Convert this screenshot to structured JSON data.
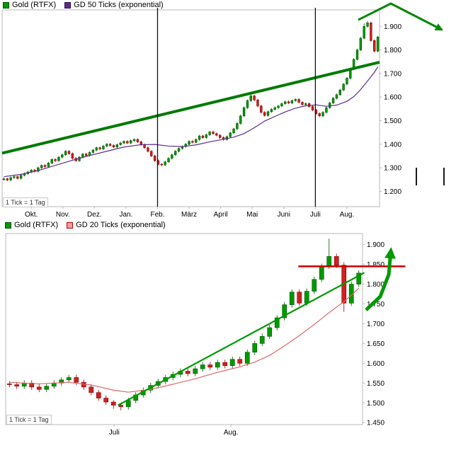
{
  "window": {
    "background": "#ffffff"
  },
  "chart_data": [
    {
      "type": "candlestick",
      "title": "Gold (RTFX) with GD 50 Ticks (exponential)",
      "legend_position": "top-left",
      "grid": false,
      "frame_color": "#b8b8b8",
      "text_color": "#000000",
      "tick_note": "1 Tick = 1 Tag",
      "legend": [
        {
          "label": "Gold (RTFX)",
          "color": "#009900",
          "border": "#004d00"
        },
        {
          "label": "GD 50 Ticks (exponential)",
          "color": "#5b2d8e",
          "border": "#2e1050"
        }
      ],
      "ylim": [
        1135,
        1970
      ],
      "y_ticks": [
        {
          "value": 1900,
          "label": "1.900"
        },
        {
          "value": 1800,
          "label": "1.800"
        },
        {
          "value": 1700,
          "label": "1.700"
        },
        {
          "value": 1600,
          "label": "1.600"
        },
        {
          "value": 1500,
          "label": "1.500"
        },
        {
          "value": 1400,
          "label": "1.400"
        },
        {
          "value": 1300,
          "label": "1.300"
        },
        {
          "value": 1200,
          "label": "1.200"
        }
      ],
      "x_labels": [
        {
          "label": "Okt.",
          "index": 8
        },
        {
          "label": "Nov.",
          "index": 17.2
        },
        {
          "label": "Dez.",
          "index": 26.4
        },
        {
          "label": "Jan.",
          "index": 35.6
        },
        {
          "label": "Feb.",
          "index": 44.8
        },
        {
          "label": "März",
          "index": 54
        },
        {
          "label": "April",
          "index": 63.2
        },
        {
          "label": "Mai",
          "index": 72.4
        },
        {
          "label": "Juni",
          "index": 81.6
        },
        {
          "label": "Juli",
          "index": 90.8
        },
        {
          "label": "Aug.",
          "index": 100
        }
      ],
      "colors": {
        "up": "#009900",
        "up_border": "#005500",
        "down": "#cc2222",
        "down_border": "#880000"
      },
      "candles": {
        "first_open": 1250,
        "wick": 5,
        "wick_overrides": {
          "46": [
            5,
            6
          ],
          "72": [
            10,
            5
          ],
          "105": [
            12,
            5
          ],
          "106": [
            8,
            5
          ]
        },
        "closes": [
          1253,
          1248,
          1258,
          1262,
          1255,
          1268,
          1275,
          1282,
          1290,
          1285,
          1300,
          1310,
          1305,
          1320,
          1335,
          1330,
          1345,
          1355,
          1370,
          1360,
          1340,
          1330,
          1345,
          1358,
          1352,
          1365,
          1375,
          1385,
          1380,
          1392,
          1400,
          1395,
          1388,
          1398,
          1405,
          1412,
          1405,
          1415,
          1420,
          1410,
          1398,
          1385,
          1370,
          1350,
          1330,
          1315,
          1312,
          1325,
          1340,
          1355,
          1370,
          1382,
          1390,
          1400,
          1412,
          1408,
          1420,
          1435,
          1428,
          1440,
          1452,
          1445,
          1438,
          1428,
          1420,
          1432,
          1448,
          1465,
          1488,
          1520,
          1555,
          1585,
          1605,
          1588,
          1562,
          1535,
          1522,
          1538,
          1548,
          1555,
          1562,
          1572,
          1580,
          1575,
          1585,
          1590,
          1578,
          1568,
          1572,
          1560,
          1545,
          1530,
          1520,
          1535,
          1555,
          1575,
          1595,
          1610,
          1630,
          1655,
          1680,
          1720,
          1760,
          1800,
          1850,
          1900,
          1915,
          1840,
          1795,
          1855
        ]
      },
      "ma": {
        "label": "GD 50 Ticks (exponential)",
        "period": 50,
        "color": "#5b2d8e",
        "points": [
          [
            0,
            1262
          ],
          [
            5,
            1272
          ],
          [
            10,
            1288
          ],
          [
            15,
            1310
          ],
          [
            20,
            1332
          ],
          [
            25,
            1352
          ],
          [
            30,
            1370
          ],
          [
            35,
            1388
          ],
          [
            40,
            1398
          ],
          [
            44,
            1399
          ],
          [
            48,
            1392
          ],
          [
            52,
            1390
          ],
          [
            56,
            1397
          ],
          [
            60,
            1410
          ],
          [
            64,
            1421
          ],
          [
            67,
            1430
          ],
          [
            70,
            1445
          ],
          [
            73,
            1470
          ],
          [
            76,
            1498
          ],
          [
            79,
            1518
          ],
          [
            82,
            1537
          ],
          [
            85,
            1553
          ],
          [
            88,
            1563
          ],
          [
            91,
            1567
          ],
          [
            94,
            1561
          ],
          [
            97,
            1566
          ],
          [
            100,
            1582
          ],
          [
            102,
            1602
          ],
          [
            104,
            1632
          ],
          [
            106,
            1668
          ],
          [
            108,
            1705
          ],
          [
            109,
            1728
          ]
        ]
      },
      "trendlines": [
        {
          "x1_frac": 0.0,
          "v1": 1362,
          "x2_frac": 1.0,
          "v2": 1748,
          "color": "#007a00",
          "width": 4
        }
      ],
      "vlines": [
        {
          "index": 44.8
        },
        {
          "index": 90.8
        }
      ],
      "annotations": [
        {
          "name": "up-down-arrow",
          "arrow": true,
          "points": [
            [
              506,
              28
            ],
            [
              552,
              5
            ],
            [
              624,
              42
            ]
          ],
          "color": "#008800",
          "width": 3
        },
        {
          "name": "marker-dash",
          "points": [
            [
              588,
              237
            ],
            [
              588,
              262
            ]
          ],
          "color": "#1a1a1a",
          "width": 2
        },
        {
          "name": "marker-dash",
          "points": [
            [
              627,
              237
            ],
            [
              627,
              262
            ]
          ],
          "color": "#1a1a1a",
          "width": 2
        }
      ]
    },
    {
      "type": "candlestick",
      "title": "Gold (RTFX) with GD 20 Ticks (exponential)",
      "legend_position": "top-left",
      "grid": false,
      "frame_color": "#b8b8b8",
      "text_color": "#000000",
      "tick_note": "1 Tick = 1 Tag",
      "legend": [
        {
          "label": "Gold (RTFX)",
          "color": "#009900",
          "border": "#004d00"
        },
        {
          "label": "GD 20 Ticks (exponential)",
          "color": "#eda0a0",
          "border": "#bb0000"
        }
      ],
      "ylim": [
        1445,
        1928
      ],
      "y_ticks": [
        {
          "value": 1900,
          "label": "1.900"
        },
        {
          "value": 1850,
          "label": "1.850"
        },
        {
          "value": 1800,
          "label": "1.800"
        },
        {
          "value": 1750,
          "label": "1.750"
        },
        {
          "value": 1700,
          "label": "1.700"
        },
        {
          "value": 1650,
          "label": "1.650"
        },
        {
          "value": 1600,
          "label": "1.600"
        },
        {
          "value": 1550,
          "label": "1.550"
        },
        {
          "value": 1500,
          "label": "1.500"
        },
        {
          "value": 1450,
          "label": "1.450"
        }
      ],
      "x_labels": [
        {
          "label": "Juli",
          "index": 14.1
        },
        {
          "label": "Aug.",
          "index": 29.8
        }
      ],
      "colors": {
        "up": "#009900",
        "up_border": "#005500",
        "down": "#cc2222",
        "down_border": "#880000"
      },
      "candles": {
        "first_open": 1548,
        "wick": 7,
        "wick_overrides": {
          "14": [
            5,
            9
          ],
          "15": [
            5,
            9
          ],
          "43": [
            45,
            7
          ],
          "45": [
            8,
            22
          ]
        },
        "closes": [
          1546,
          1542,
          1550,
          1540,
          1534,
          1542,
          1550,
          1558,
          1564,
          1552,
          1540,
          1526,
          1512,
          1502,
          1494,
          1490,
          1506,
          1520,
          1532,
          1544,
          1554,
          1564,
          1572,
          1580,
          1574,
          1586,
          1596,
          1590,
          1602,
          1594,
          1610,
          1600,
          1628,
          1650,
          1668,
          1690,
          1715,
          1748,
          1780,
          1752,
          1782,
          1812,
          1845,
          1870,
          1848,
          1752,
          1800,
          1828
        ]
      },
      "ma": {
        "label": "GD 20 Ticks (exponential)",
        "period": 20,
        "color": "#e06666",
        "points": [
          [
            0,
            1552
          ],
          [
            4,
            1548
          ],
          [
            8,
            1552
          ],
          [
            11,
            1545
          ],
          [
            14,
            1532
          ],
          [
            16,
            1527
          ],
          [
            19,
            1534
          ],
          [
            22,
            1547
          ],
          [
            25,
            1561
          ],
          [
            28,
            1577
          ],
          [
            31,
            1591
          ],
          [
            33,
            1603
          ],
          [
            35,
            1620
          ],
          [
            37,
            1644
          ],
          [
            39,
            1670
          ],
          [
            41,
            1698
          ],
          [
            43,
            1728
          ],
          [
            45,
            1756
          ],
          [
            46,
            1772
          ],
          [
            47,
            1790
          ]
        ]
      },
      "trendlines": [
        {
          "x1_frac": 0.315,
          "v1": 1494,
          "x2_frac": 1.005,
          "v2": 1829,
          "color": "#009900",
          "width": 2.2
        },
        {
          "x1_frac": 0.82,
          "v1": 1845,
          "x2_frac": 1.12,
          "v2": 1845,
          "color": "#cc0000",
          "width": 2.5
        }
      ],
      "vlines": [],
      "annotations": [
        {
          "name": "up-arrow",
          "arrow": true,
          "points": [
            [
              517,
              128
            ],
            [
              537,
              109
            ],
            [
              549,
              78
            ],
            [
              552,
              44
            ]
          ],
          "color": "#009900",
          "width": 5
        }
      ]
    }
  ]
}
